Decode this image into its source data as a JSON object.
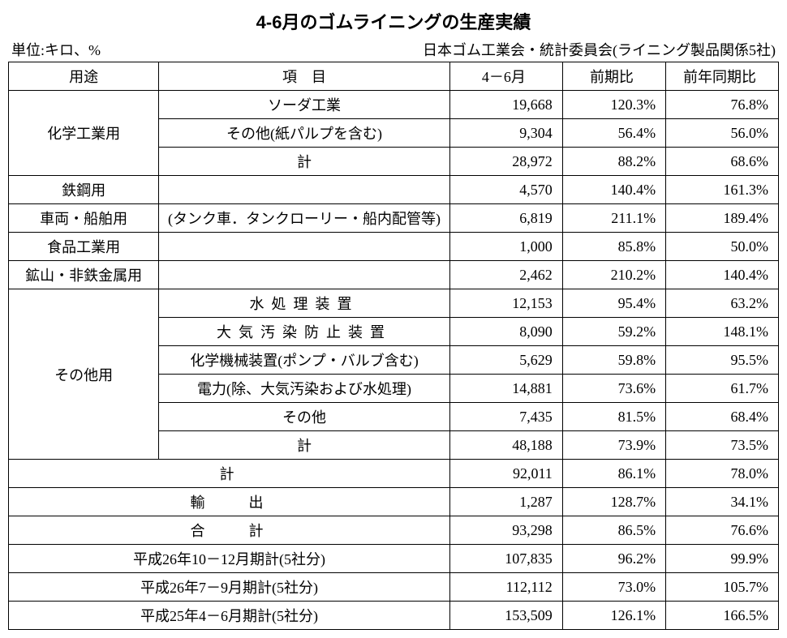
{
  "title": "4-6月のゴムライニングの生産実績",
  "unit_label": "単位:キロ、%",
  "source_label": "日本ゴム工業会・統計委員会(ライニング製品関係5社)",
  "columns": {
    "use": "用途",
    "item": "項　目",
    "period": "4－6月",
    "prev_period": "前期比",
    "prev_year": "前年同期比"
  },
  "groups": {
    "chemical": {
      "label": "化学工業用",
      "rows": [
        {
          "item": "ソーダ工業",
          "val": "19,668",
          "p1": "120.3%",
          "p2": "76.8%"
        },
        {
          "item": "その他(紙パルプを含む)",
          "val": "9,304",
          "p1": "56.4%",
          "p2": "56.0%"
        },
        {
          "item": "計",
          "val": "28,972",
          "p1": "88.2%",
          "p2": "68.6%"
        }
      ]
    },
    "steel": {
      "label": "鉄鋼用",
      "item": "",
      "val": "4,570",
      "p1": "140.4%",
      "p2": "161.3%"
    },
    "vehicle": {
      "label": "車両・船舶用",
      "item": "(タンク車．タンクローリー・船内配管等)",
      "val": "6,819",
      "p1": "211.1%",
      "p2": "189.4%"
    },
    "food": {
      "label": "食品工業用",
      "item": "",
      "val": "1,000",
      "p1": "85.8%",
      "p2": "50.0%"
    },
    "mining": {
      "label": "鉱山・非鉄金属用",
      "item": "",
      "val": "2,462",
      "p1": "210.2%",
      "p2": "140.4%"
    },
    "other": {
      "label": "その他用",
      "rows": [
        {
          "item": "水処理装置",
          "val": "12,153",
          "p1": "95.4%",
          "p2": "63.2%",
          "spaced": true
        },
        {
          "item": "大気汚染防止装置",
          "val": "8,090",
          "p1": "59.2%",
          "p2": "148.1%",
          "spaced": true
        },
        {
          "item": "化学機械装置(ポンプ・バルブ含む)",
          "val": "5,629",
          "p1": "59.8%",
          "p2": "95.5%"
        },
        {
          "item": "電力(除、大気汚染および水処理)",
          "val": "14,881",
          "p1": "73.6%",
          "p2": "61.7%"
        },
        {
          "item": "その他",
          "val": "7,435",
          "p1": "81.5%",
          "p2": "68.4%"
        },
        {
          "item": "計",
          "val": "48,188",
          "p1": "73.9%",
          "p2": "73.5%"
        }
      ]
    }
  },
  "footer": [
    {
      "label": "計",
      "val": "92,011",
      "p1": "86.1%",
      "p2": "78.0%",
      "style": "xwide"
    },
    {
      "label": "輸出",
      "val": "1,287",
      "p1": "128.7%",
      "p2": "34.1%",
      "style": "xwide"
    },
    {
      "label": "合計",
      "val": "93,298",
      "p1": "86.5%",
      "p2": "76.6%",
      "style": "xwide"
    },
    {
      "label": "平成26年10－12月期計(5社分)",
      "val": "107,835",
      "p1": "96.2%",
      "p2": "99.9%",
      "style": "center"
    },
    {
      "label": "平成26年7－9月期計(5社分)",
      "val": "112,112",
      "p1": "73.0%",
      "p2": "105.7%",
      "style": "center"
    },
    {
      "label": "平成25年4－6月期計(5社分)",
      "val": "153,509",
      "p1": "126.1%",
      "p2": "166.5%",
      "style": "center"
    }
  ]
}
